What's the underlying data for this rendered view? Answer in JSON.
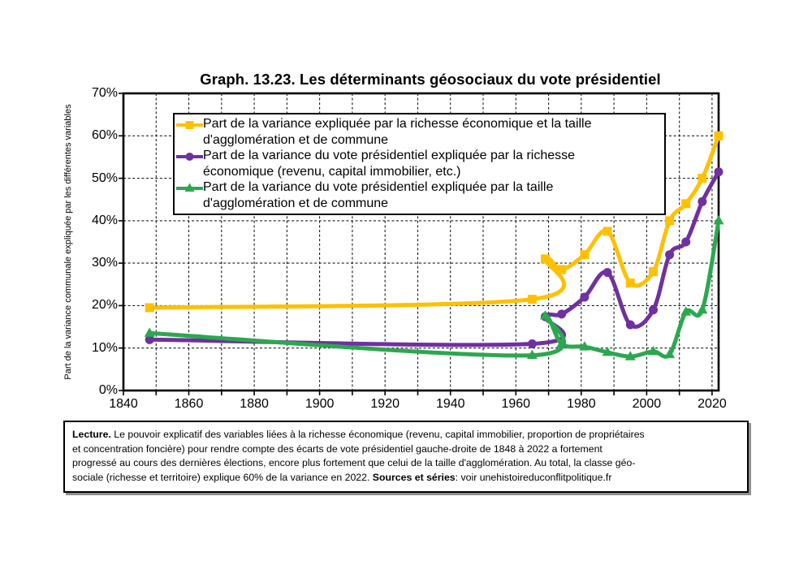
{
  "figure": {
    "title": "Graph. 13.23. Les déterminants géosociaux du vote présidentiel"
  },
  "chart_data": {
    "type": "line",
    "title": "Graph. 13.23. Les déterminants géosociaux du vote présidentiel",
    "xlabel": "",
    "ylabel": "Part de la variance communale expliquée par les différentes variables",
    "xlim": [
      1840,
      2022
    ],
    "ylim": [
      0,
      70
    ],
    "grid": "dashed",
    "legend_position": "inside-top-left",
    "x_tick_labels": [
      "1840",
      "1860",
      "1880",
      "1900",
      "1920",
      "1940",
      "1960",
      "1980",
      "2000",
      "2020"
    ],
    "y_tick_labels": [
      "0%",
      "10%",
      "20%",
      "30%",
      "40%",
      "50%",
      "60%",
      "70%"
    ],
    "x": [
      1848,
      1965,
      1969,
      1974,
      1981,
      1988,
      1995,
      2002,
      2007,
      2012,
      2017,
      2022
    ],
    "series": [
      {
        "name": "Part de la variance expliquée par la richesse économique et la taille\nd'agglomération et de commune",
        "color": "#FFC000",
        "marker": "square",
        "values": [
          19.5,
          21.5,
          31,
          28.5,
          32,
          37.5,
          25.3,
          28,
          40,
          44,
          50,
          60
        ]
      },
      {
        "name": "Part de la variance du vote présidentiel expliquée par la richesse\néconomique (revenu, capital immobilier, etc.)",
        "color": "#7030A0",
        "marker": "circle",
        "values": [
          12,
          11,
          17.4,
          18,
          22,
          27.8,
          15.5,
          19,
          32,
          35,
          44.5,
          51.5
        ]
      },
      {
        "name": "Part de la variance du vote présidentiel expliquée par la taille\nd'agglomération et de commune",
        "color": "#2BA84E",
        "marker": "triangle",
        "values": [
          13.5,
          8.3,
          17.6,
          11,
          10.3,
          9,
          8,
          9.2,
          8.5,
          18.5,
          19,
          40
        ]
      }
    ]
  },
  "lecture": {
    "label": "Lecture.",
    "body": " Le pouvoir explicatif des variables liées à la richesse économique (revenu, capital immobilier, proportion de propriétaires\net concentration foncière) pour rendre compte des écarts de vote présidentiel gauche-droite de 1848 à 2022 a fortement\nprogressé au cours des dernières élections, encore plus fortement que celui de la taille d'agglomération. Au total, la classe géo-\nsociale (richesse et territoire) explique 60% de la variance en 2022. ",
    "sources_label": "Sources et séries",
    "sources_text": ": voir unehistoireduconflitpolitique.fr"
  }
}
